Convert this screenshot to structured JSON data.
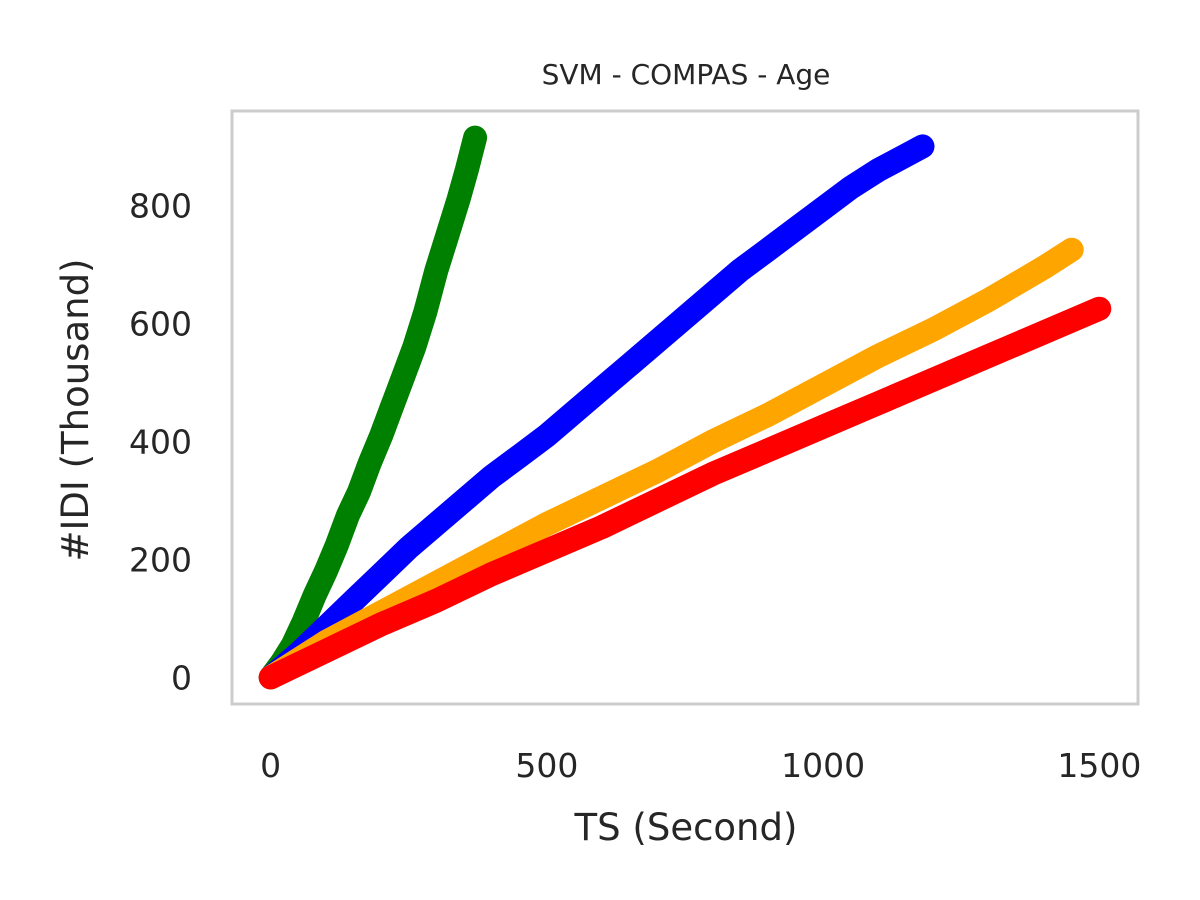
{
  "chart_data": {
    "type": "line",
    "title": "SVM - COMPAS - Age",
    "xlabel": "TS (Second)",
    "ylabel": "#IDI (Thousand)",
    "xlim": [
      -70,
      1570
    ],
    "ylim": [
      -45,
      960
    ],
    "xticks": [
      0,
      500,
      1000,
      1500
    ],
    "yticks": [
      0,
      200,
      400,
      600,
      800
    ],
    "grid": false,
    "legend": "none",
    "series": [
      {
        "color": "#008000",
        "x": [
          0,
          20,
          40,
          60,
          80,
          100,
          120,
          140,
          160,
          180,
          200,
          220,
          240,
          260,
          280,
          300,
          320,
          340,
          355,
          370
        ],
        "y": [
          0,
          25,
          55,
          95,
          140,
          180,
          225,
          275,
          315,
          365,
          410,
          460,
          510,
          560,
          620,
          690,
          750,
          810,
          860,
          915
        ]
      },
      {
        "color": "#0000ff",
        "x": [
          0,
          50,
          100,
          150,
          200,
          250,
          300,
          350,
          400,
          450,
          500,
          550,
          600,
          650,
          700,
          750,
          800,
          850,
          900,
          950,
          1000,
          1050,
          1100,
          1150,
          1180
        ],
        "y": [
          0,
          40,
          85,
          130,
          175,
          220,
          260,
          300,
          340,
          375,
          410,
          450,
          490,
          530,
          570,
          610,
          650,
          690,
          725,
          760,
          795,
          830,
          860,
          885,
          900
        ]
      },
      {
        "color": "#ffa500",
        "x": [
          0,
          100,
          200,
          300,
          400,
          500,
          600,
          700,
          800,
          900,
          1000,
          1100,
          1200,
          1300,
          1400,
          1450
        ],
        "y": [
          0,
          60,
          110,
          160,
          210,
          260,
          305,
          350,
          400,
          445,
          495,
          545,
          590,
          640,
          695,
          725
        ]
      },
      {
        "color": "#ff0000",
        "x": [
          0,
          100,
          200,
          300,
          400,
          500,
          600,
          700,
          800,
          900,
          1000,
          1100,
          1200,
          1300,
          1400,
          1500
        ],
        "y": [
          0,
          45,
          90,
          130,
          175,
          215,
          255,
          300,
          345,
          385,
          425,
          465,
          505,
          545,
          585,
          625
        ]
      }
    ]
  }
}
